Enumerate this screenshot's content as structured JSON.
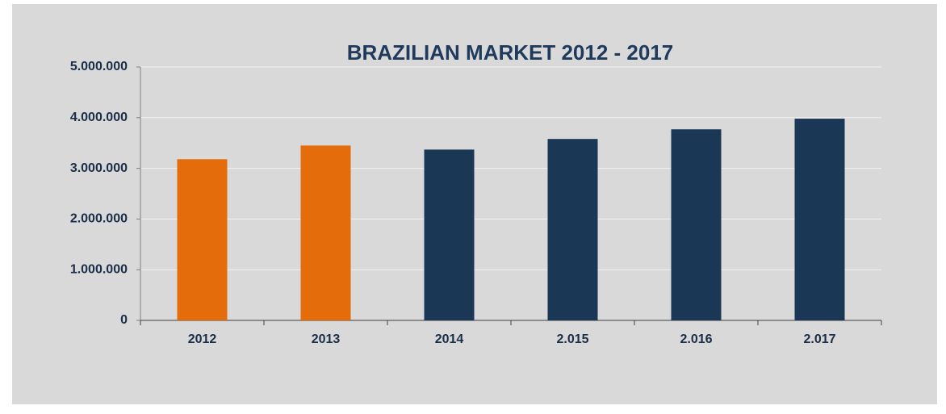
{
  "chart_data": {
    "type": "bar",
    "title": "BRAZILIAN MARKET 2012 - 2017",
    "categories": [
      "2012",
      "2013",
      "2014",
      "2.015",
      "2.016",
      "2.017"
    ],
    "values": [
      3180000,
      3450000,
      3370000,
      3580000,
      3770000,
      3980000
    ],
    "colors": [
      "#e46c0a",
      "#e46c0a",
      "#1b3756",
      "#1b3756",
      "#1b3756",
      "#1b3756"
    ],
    "ylim": [
      0,
      5000000
    ],
    "yticks": [
      0,
      {
        "value": 1000000,
        "label": "1.000.000"
      },
      {
        "value": 2000000,
        "label": "2.000.000"
      },
      {
        "value": 3000000,
        "label": "3.000.000"
      },
      {
        "value": 4000000,
        "label": "4.000.000"
      },
      {
        "value": 5000000,
        "label": "5.000.000"
      }
    ],
    "grid": true
  }
}
